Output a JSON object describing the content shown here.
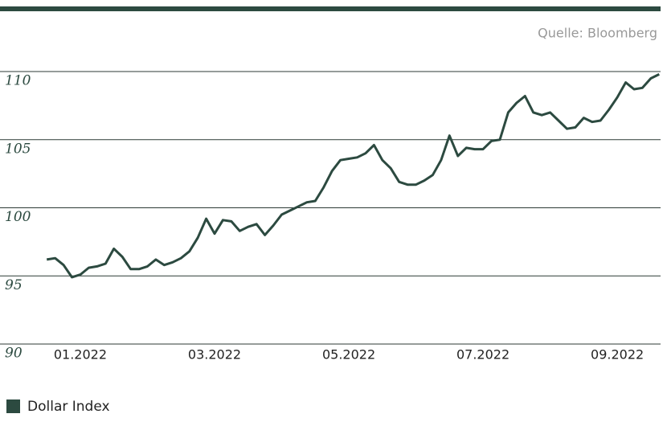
{
  "chart_data": {
    "type": "line",
    "source": "Quelle: Bloomberg",
    "categories": [
      null,
      null,
      null,
      null,
      "01.2022",
      null,
      null,
      null,
      null,
      null,
      null,
      null,
      null,
      null,
      null,
      null,
      null,
      null,
      null,
      null,
      "03.2022",
      null,
      null,
      null,
      null,
      null,
      null,
      null,
      null,
      null,
      null,
      null,
      null,
      null,
      null,
      null,
      "05.2022",
      null,
      null,
      null,
      null,
      null,
      null,
      null,
      null,
      null,
      null,
      null,
      null,
      null,
      null,
      null,
      "07.2022",
      null,
      null,
      null,
      null,
      null,
      null,
      null,
      null,
      null,
      null,
      null,
      null,
      null,
      null,
      null,
      "09.2022",
      null,
      null,
      null,
      null,
      null
    ],
    "series": [
      {
        "name": "Dollar Index",
        "color": "#2c4a40",
        "values": [
          96.2,
          96.3,
          95.8,
          94.9,
          95.1,
          95.6,
          95.7,
          95.9,
          97.0,
          96.4,
          95.5,
          95.5,
          95.7,
          96.2,
          95.8,
          96.0,
          96.3,
          96.8,
          97.8,
          99.2,
          98.1,
          99.1,
          99.0,
          98.3,
          98.6,
          98.8,
          98.0,
          98.7,
          99.5,
          99.8,
          100.1,
          100.4,
          100.5,
          101.5,
          102.7,
          103.5,
          103.6,
          103.7,
          104.0,
          104.6,
          103.5,
          102.9,
          101.9,
          101.7,
          101.7,
          102.0,
          102.4,
          103.5,
          105.3,
          103.8,
          104.4,
          104.3,
          104.3,
          104.9,
          105.0,
          107.0,
          107.7,
          108.2,
          107.0,
          106.8,
          107.0,
          106.4,
          105.8,
          105.9,
          106.6,
          106.3,
          106.4,
          107.2,
          108.1,
          109.2,
          108.7,
          108.8,
          109.5,
          109.8
        ]
      }
    ],
    "ylim": [
      90,
      110
    ],
    "yticks": [
      90,
      95,
      100,
      105,
      110
    ],
    "grid": true
  }
}
